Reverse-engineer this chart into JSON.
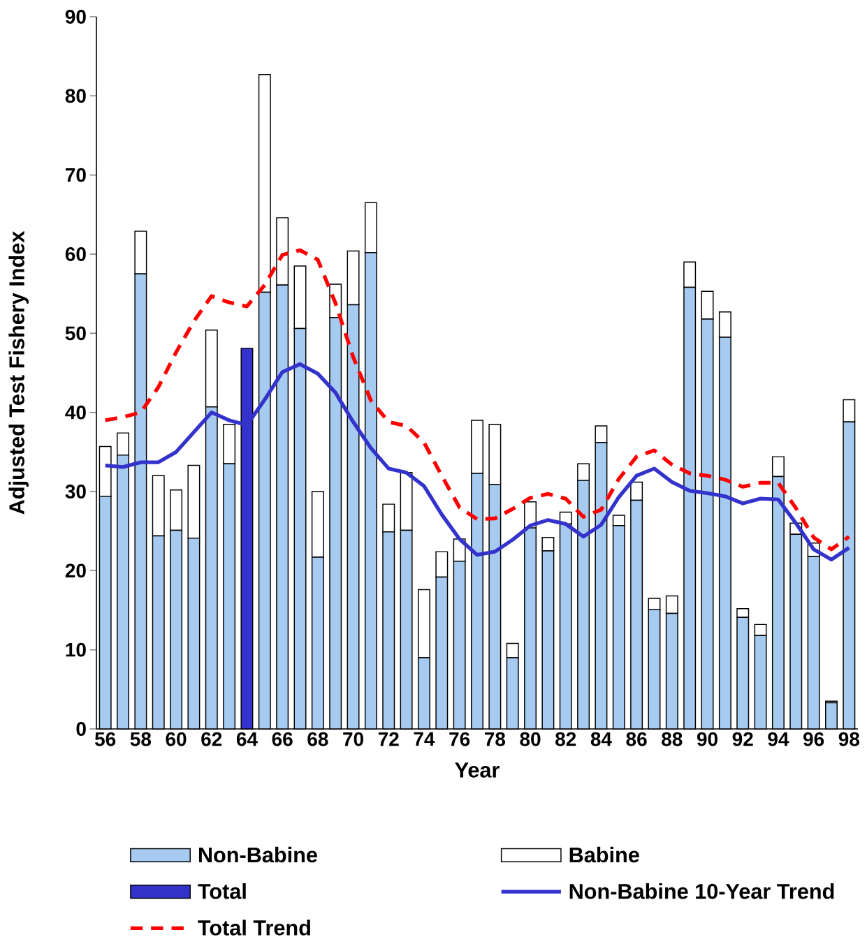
{
  "chart_data": {
    "type": "bar",
    "stacked": true,
    "xlabel": "Year",
    "ylabel": "Adjusted Test Fishery Index",
    "categories": [
      "56",
      null,
      "58",
      null,
      "60",
      null,
      "62",
      null,
      "64",
      null,
      "66",
      null,
      "68",
      null,
      "70",
      null,
      "72",
      null,
      "74",
      null,
      "76",
      null,
      "78",
      null,
      "80",
      null,
      "82",
      null,
      "84",
      null,
      "86",
      null,
      "88",
      null,
      "90",
      null,
      "92",
      null,
      "94",
      null,
      "96",
      null,
      "98"
    ],
    "ylim": [
      0,
      90
    ],
    "yticks": [
      0,
      10,
      20,
      30,
      40,
      50,
      60,
      70,
      80,
      90
    ],
    "legend": "bottom",
    "series": [
      {
        "name": "Non-Babine",
        "color": "#a6caf0",
        "values": [
          29.4,
          34.6,
          57.5,
          24.4,
          25.1,
          24.1,
          40.7,
          33.5,
          null,
          55.2,
          56.1,
          50.6,
          21.7,
          52.0,
          53.6,
          60.2,
          24.9,
          25.1,
          9.0,
          19.2,
          21.2,
          32.3,
          30.9,
          9.0,
          25.4,
          22.5,
          25.9,
          31.4,
          36.2,
          25.7,
          28.9,
          15.1,
          14.6,
          55.8,
          51.8,
          49.5,
          14.1,
          11.8,
          31.9,
          24.6,
          21.8,
          3.3,
          38.8
        ]
      },
      {
        "name": "Babine",
        "color": "#ffffff",
        "values": [
          6.3,
          2.8,
          5.4,
          7.6,
          5.1,
          9.2,
          9.7,
          5.0,
          null,
          27.5,
          8.5,
          7.9,
          8.3,
          4.2,
          6.8,
          6.3,
          3.5,
          7.3,
          8.6,
          3.2,
          2.8,
          6.7,
          7.6,
          1.8,
          3.3,
          1.7,
          1.5,
          2.1,
          2.1,
          1.3,
          2.3,
          1.4,
          2.2,
          3.2,
          3.5,
          3.2,
          1.1,
          1.4,
          2.5,
          1.4,
          1.7,
          0.2,
          2.8
        ]
      },
      {
        "name": "Total",
        "color": "#3333cc",
        "values": [
          null,
          null,
          null,
          null,
          null,
          null,
          null,
          null,
          48.1,
          null,
          null,
          null,
          null,
          null,
          null,
          null,
          null,
          null,
          null,
          null,
          null,
          null,
          null,
          null,
          null,
          null,
          null,
          null,
          null,
          null,
          null,
          null,
          null,
          null,
          null,
          null,
          null,
          null,
          null,
          null,
          null,
          null,
          null
        ]
      },
      {
        "name": "Non-Babine 10-Year Trend",
        "type": "line",
        "line_style": "solid",
        "color": "#3333cc",
        "values": [
          33.3,
          33.1,
          33.7,
          33.7,
          35.0,
          37.5,
          40.0,
          39.0,
          38.4,
          41.6,
          45.1,
          46.1,
          44.9,
          42.5,
          38.8,
          35.5,
          32.9,
          32.4,
          30.7,
          27.1,
          24.0,
          22.0,
          22.4,
          23.9,
          25.7,
          26.4,
          25.9,
          24.3,
          25.8,
          29.3,
          32.0,
          32.9,
          31.2,
          30.1,
          29.8,
          29.4,
          28.5,
          29.1,
          29.0,
          26.0,
          22.7,
          21.4,
          22.9
        ]
      },
      {
        "name": "Total Trend",
        "type": "line",
        "line_style": "dashed",
        "color": "#ff0000",
        "values": [
          39.0,
          39.4,
          40.0,
          43.2,
          47.6,
          51.5,
          54.7,
          53.9,
          53.4,
          56.1,
          59.9,
          60.5,
          59.3,
          53.8,
          47.0,
          41.5,
          38.8,
          38.3,
          36.2,
          32.0,
          28.0,
          26.5,
          26.6,
          27.8,
          29.2,
          29.7,
          29.1,
          26.8,
          27.7,
          31.6,
          34.4,
          35.2,
          33.4,
          32.3,
          32.0,
          31.5,
          30.6,
          31.1,
          31.1,
          27.9,
          24.2,
          22.7,
          24.3
        ]
      }
    ]
  }
}
